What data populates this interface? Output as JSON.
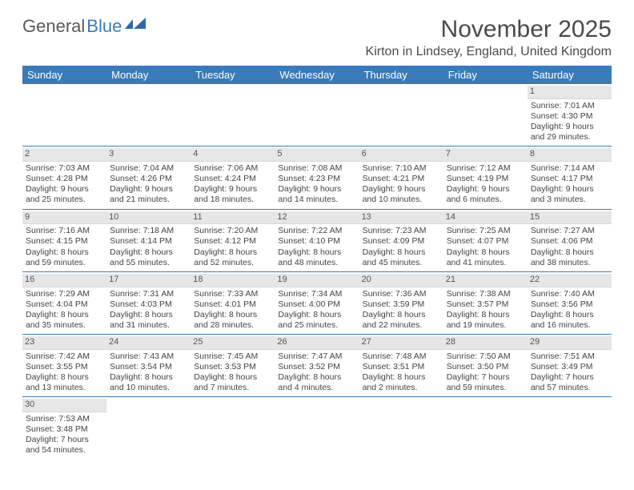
{
  "logo": {
    "general": "General",
    "blue": "Blue"
  },
  "title": "November 2025",
  "location": "Kirton in Lindsey, England, United Kingdom",
  "colors": {
    "header_bg": "#3a7ab8",
    "daynum_bg": "#e6e6e6",
    "row_border": "#3a7ab8",
    "text": "#444444",
    "background": "#ffffff"
  },
  "dayNames": [
    "Sunday",
    "Monday",
    "Tuesday",
    "Wednesday",
    "Thursday",
    "Friday",
    "Saturday"
  ],
  "typography": {
    "title_fontsize": 30,
    "location_fontsize": 16,
    "dayhead_fontsize": 13,
    "cell_fontsize": 10.5
  },
  "weeks": [
    [
      {
        "empty": true
      },
      {
        "empty": true
      },
      {
        "empty": true
      },
      {
        "empty": true
      },
      {
        "empty": true
      },
      {
        "empty": true
      },
      {
        "day": "1",
        "sunrise": "Sunrise: 7:01 AM",
        "sunset": "Sunset: 4:30 PM",
        "day1": "Daylight: 9 hours",
        "day2": "and 29 minutes."
      }
    ],
    [
      {
        "day": "2",
        "sunrise": "Sunrise: 7:03 AM",
        "sunset": "Sunset: 4:28 PM",
        "day1": "Daylight: 9 hours",
        "day2": "and 25 minutes."
      },
      {
        "day": "3",
        "sunrise": "Sunrise: 7:04 AM",
        "sunset": "Sunset: 4:26 PM",
        "day1": "Daylight: 9 hours",
        "day2": "and 21 minutes."
      },
      {
        "day": "4",
        "sunrise": "Sunrise: 7:06 AM",
        "sunset": "Sunset: 4:24 PM",
        "day1": "Daylight: 9 hours",
        "day2": "and 18 minutes."
      },
      {
        "day": "5",
        "sunrise": "Sunrise: 7:08 AM",
        "sunset": "Sunset: 4:23 PM",
        "day1": "Daylight: 9 hours",
        "day2": "and 14 minutes."
      },
      {
        "day": "6",
        "sunrise": "Sunrise: 7:10 AM",
        "sunset": "Sunset: 4:21 PM",
        "day1": "Daylight: 9 hours",
        "day2": "and 10 minutes."
      },
      {
        "day": "7",
        "sunrise": "Sunrise: 7:12 AM",
        "sunset": "Sunset: 4:19 PM",
        "day1": "Daylight: 9 hours",
        "day2": "and 6 minutes."
      },
      {
        "day": "8",
        "sunrise": "Sunrise: 7:14 AM",
        "sunset": "Sunset: 4:17 PM",
        "day1": "Daylight: 9 hours",
        "day2": "and 3 minutes."
      }
    ],
    [
      {
        "day": "9",
        "sunrise": "Sunrise: 7:16 AM",
        "sunset": "Sunset: 4:15 PM",
        "day1": "Daylight: 8 hours",
        "day2": "and 59 minutes."
      },
      {
        "day": "10",
        "sunrise": "Sunrise: 7:18 AM",
        "sunset": "Sunset: 4:14 PM",
        "day1": "Daylight: 8 hours",
        "day2": "and 55 minutes."
      },
      {
        "day": "11",
        "sunrise": "Sunrise: 7:20 AM",
        "sunset": "Sunset: 4:12 PM",
        "day1": "Daylight: 8 hours",
        "day2": "and 52 minutes."
      },
      {
        "day": "12",
        "sunrise": "Sunrise: 7:22 AM",
        "sunset": "Sunset: 4:10 PM",
        "day1": "Daylight: 8 hours",
        "day2": "and 48 minutes."
      },
      {
        "day": "13",
        "sunrise": "Sunrise: 7:23 AM",
        "sunset": "Sunset: 4:09 PM",
        "day1": "Daylight: 8 hours",
        "day2": "and 45 minutes."
      },
      {
        "day": "14",
        "sunrise": "Sunrise: 7:25 AM",
        "sunset": "Sunset: 4:07 PM",
        "day1": "Daylight: 8 hours",
        "day2": "and 41 minutes."
      },
      {
        "day": "15",
        "sunrise": "Sunrise: 7:27 AM",
        "sunset": "Sunset: 4:06 PM",
        "day1": "Daylight: 8 hours",
        "day2": "and 38 minutes."
      }
    ],
    [
      {
        "day": "16",
        "sunrise": "Sunrise: 7:29 AM",
        "sunset": "Sunset: 4:04 PM",
        "day1": "Daylight: 8 hours",
        "day2": "and 35 minutes."
      },
      {
        "day": "17",
        "sunrise": "Sunrise: 7:31 AM",
        "sunset": "Sunset: 4:03 PM",
        "day1": "Daylight: 8 hours",
        "day2": "and 31 minutes."
      },
      {
        "day": "18",
        "sunrise": "Sunrise: 7:33 AM",
        "sunset": "Sunset: 4:01 PM",
        "day1": "Daylight: 8 hours",
        "day2": "and 28 minutes."
      },
      {
        "day": "19",
        "sunrise": "Sunrise: 7:34 AM",
        "sunset": "Sunset: 4:00 PM",
        "day1": "Daylight: 8 hours",
        "day2": "and 25 minutes."
      },
      {
        "day": "20",
        "sunrise": "Sunrise: 7:36 AM",
        "sunset": "Sunset: 3:59 PM",
        "day1": "Daylight: 8 hours",
        "day2": "and 22 minutes."
      },
      {
        "day": "21",
        "sunrise": "Sunrise: 7:38 AM",
        "sunset": "Sunset: 3:57 PM",
        "day1": "Daylight: 8 hours",
        "day2": "and 19 minutes."
      },
      {
        "day": "22",
        "sunrise": "Sunrise: 7:40 AM",
        "sunset": "Sunset: 3:56 PM",
        "day1": "Daylight: 8 hours",
        "day2": "and 16 minutes."
      }
    ],
    [
      {
        "day": "23",
        "sunrise": "Sunrise: 7:42 AM",
        "sunset": "Sunset: 3:55 PM",
        "day1": "Daylight: 8 hours",
        "day2": "and 13 minutes."
      },
      {
        "day": "24",
        "sunrise": "Sunrise: 7:43 AM",
        "sunset": "Sunset: 3:54 PM",
        "day1": "Daylight: 8 hours",
        "day2": "and 10 minutes."
      },
      {
        "day": "25",
        "sunrise": "Sunrise: 7:45 AM",
        "sunset": "Sunset: 3:53 PM",
        "day1": "Daylight: 8 hours",
        "day2": "and 7 minutes."
      },
      {
        "day": "26",
        "sunrise": "Sunrise: 7:47 AM",
        "sunset": "Sunset: 3:52 PM",
        "day1": "Daylight: 8 hours",
        "day2": "and 4 minutes."
      },
      {
        "day": "27",
        "sunrise": "Sunrise: 7:48 AM",
        "sunset": "Sunset: 3:51 PM",
        "day1": "Daylight: 8 hours",
        "day2": "and 2 minutes."
      },
      {
        "day": "28",
        "sunrise": "Sunrise: 7:50 AM",
        "sunset": "Sunset: 3:50 PM",
        "day1": "Daylight: 7 hours",
        "day2": "and 59 minutes."
      },
      {
        "day": "29",
        "sunrise": "Sunrise: 7:51 AM",
        "sunset": "Sunset: 3:49 PM",
        "day1": "Daylight: 7 hours",
        "day2": "and 57 minutes."
      }
    ],
    [
      {
        "day": "30",
        "sunrise": "Sunrise: 7:53 AM",
        "sunset": "Sunset: 3:48 PM",
        "day1": "Daylight: 7 hours",
        "day2": "and 54 minutes."
      },
      {
        "empty": true
      },
      {
        "empty": true
      },
      {
        "empty": true
      },
      {
        "empty": true
      },
      {
        "empty": true
      },
      {
        "empty": true
      }
    ]
  ]
}
